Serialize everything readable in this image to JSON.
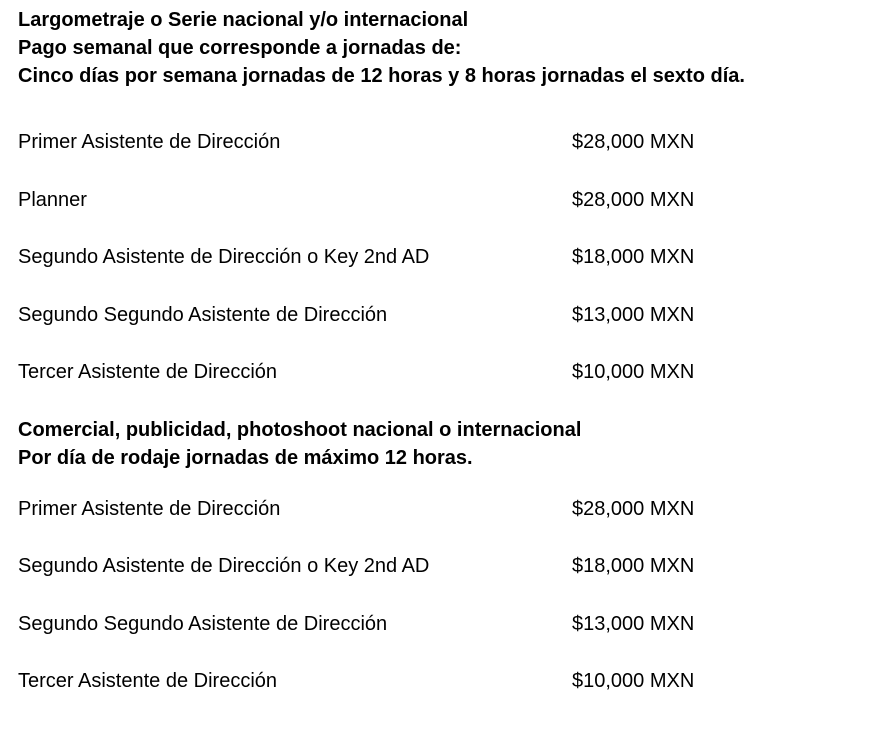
{
  "page": {
    "background_color": "#ffffff",
    "text_color": "#000000",
    "currency_suffix": "MXN"
  },
  "sections": [
    {
      "heading_lines": [
        "Largometraje o Serie nacional y/o internacional",
        "Pago semanal que corresponde a jornadas de:",
        "Cinco días por semana jornadas de 12 horas y 8 horas jornadas el sexto día."
      ],
      "rows": [
        {
          "role": "Primer Asistente de Dirección",
          "rate": "$28,000 MXN"
        },
        {
          "role": "Planner",
          "rate": "$28,000 MXN"
        },
        {
          "role": "Segundo Asistente de Dirección o Key 2nd AD",
          "rate": "$18,000 MXN"
        },
        {
          "role": "Segundo Segundo Asistente de Dirección",
          "rate": "$13,000 MXN"
        },
        {
          "role": "Tercer Asistente de Dirección",
          "rate": "$10,000 MXN"
        }
      ]
    },
    {
      "heading_lines": [
        "Comercial, publicidad, photoshoot nacional o internacional",
        "Por día de rodaje jornadas de máximo 12 horas."
      ],
      "rows": [
        {
          "role": "Primer Asistente de Dirección",
          "rate": "$28,000 MXN"
        },
        {
          "role": "Segundo Asistente de Dirección o Key 2nd AD",
          "rate": "$18,000 MXN"
        },
        {
          "role": "Segundo Segundo Asistente de Dirección",
          "rate": "$13,000 MXN"
        },
        {
          "role": "Tercer Asistente de Dirección",
          "rate": "$10,000 MXN"
        }
      ]
    }
  ]
}
